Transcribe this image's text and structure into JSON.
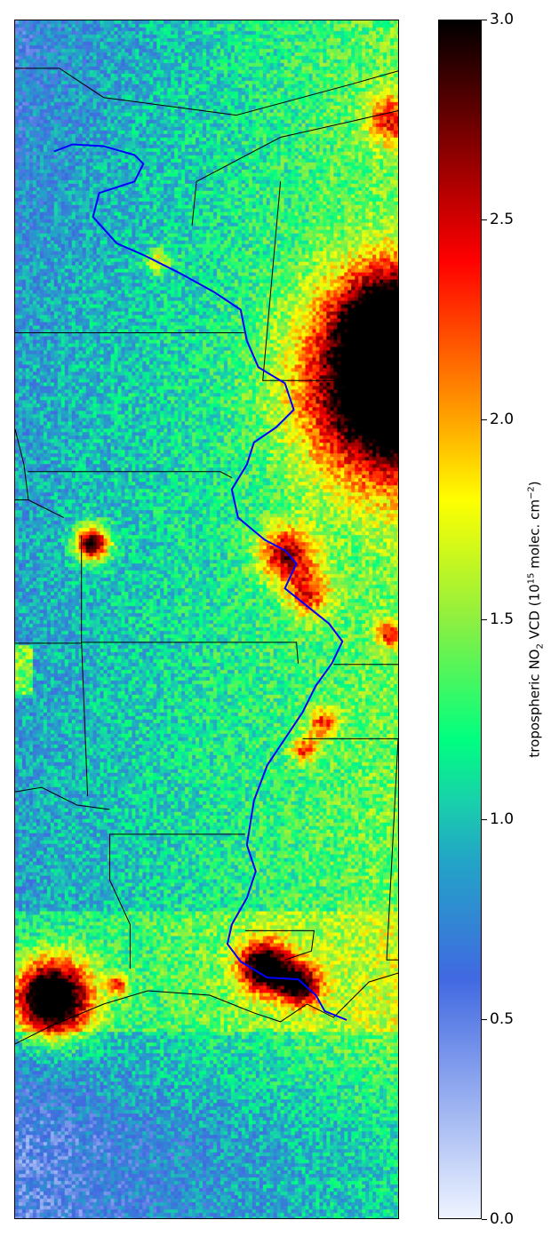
{
  "chart_data": {
    "type": "heatmap",
    "title": "",
    "colorbar": {
      "label_prefix": "tropospheric NO",
      "label_sub": "2",
      "label_mid": " VCD (10",
      "label_sup1": "15",
      "label_mid2": " molec. cm",
      "label_sup2": "−2",
      "label_suffix": ")",
      "range": [
        0.0,
        3.0
      ],
      "ticks": [
        "0.0",
        "0.5",
        "1.0",
        "1.5",
        "2.0",
        "2.5",
        "3.0"
      ],
      "colormap": [
        [
          0.0,
          "#eef4ff"
        ],
        [
          0.6,
          "#4169e1"
        ],
        [
          0.9,
          "#22a6c6"
        ],
        [
          1.05,
          "#18d2aa"
        ],
        [
          1.2,
          "#00ff80"
        ],
        [
          1.5,
          "#8fef40"
        ],
        [
          1.8,
          "#ffff00"
        ],
        [
          2.0,
          "#ffa500"
        ],
        [
          2.4,
          "#ff0000"
        ],
        [
          3.0,
          "#000000"
        ]
      ]
    },
    "river_color": "#0000ff",
    "border_color": "#000000"
  }
}
